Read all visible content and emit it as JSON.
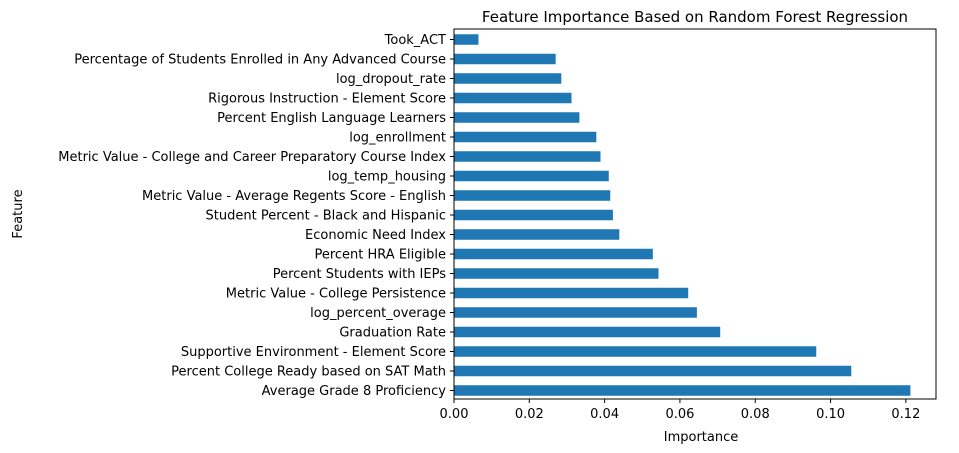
{
  "chart_data": {
    "type": "bar",
    "orientation": "horizontal",
    "title": "Feature Importance Based on Random Forest Regression",
    "xlabel": "Importance",
    "ylabel": "Feature",
    "xlim": [
      0,
      0.128
    ],
    "xticks": [
      "0.00",
      "0.02",
      "0.04",
      "0.06",
      "0.08",
      "0.10",
      "0.12"
    ],
    "grid": false,
    "bar_color": "#1f77b4",
    "categories": [
      "Took_ACT",
      "Percentage of Students Enrolled in Any Advanced Course",
      "log_dropout_rate",
      "Rigorous Instruction - Element Score",
      "Percent English Language Learners",
      "log_enrollment",
      "Metric Value - College and Career Preparatory Course Index",
      "log_temp_housing",
      "Metric Value - Average Regents Score - English",
      "Student Percent - Black and Hispanic",
      "Economic Need Index",
      "Percent HRA Eligible",
      "Percent Students with IEPs",
      "Metric Value - College Persistence",
      "log_percent_overage",
      "Graduation Rate",
      "Supportive Environment - Element Score",
      "Percent College Ready based on SAT Math",
      "Average Grade 8 Proficiency"
    ],
    "values": [
      0.0065,
      0.027,
      0.0285,
      0.0312,
      0.0333,
      0.0378,
      0.0389,
      0.0411,
      0.0415,
      0.0422,
      0.0439,
      0.0528,
      0.0543,
      0.0622,
      0.0645,
      0.0707,
      0.0962,
      0.1055,
      0.1212
    ]
  }
}
